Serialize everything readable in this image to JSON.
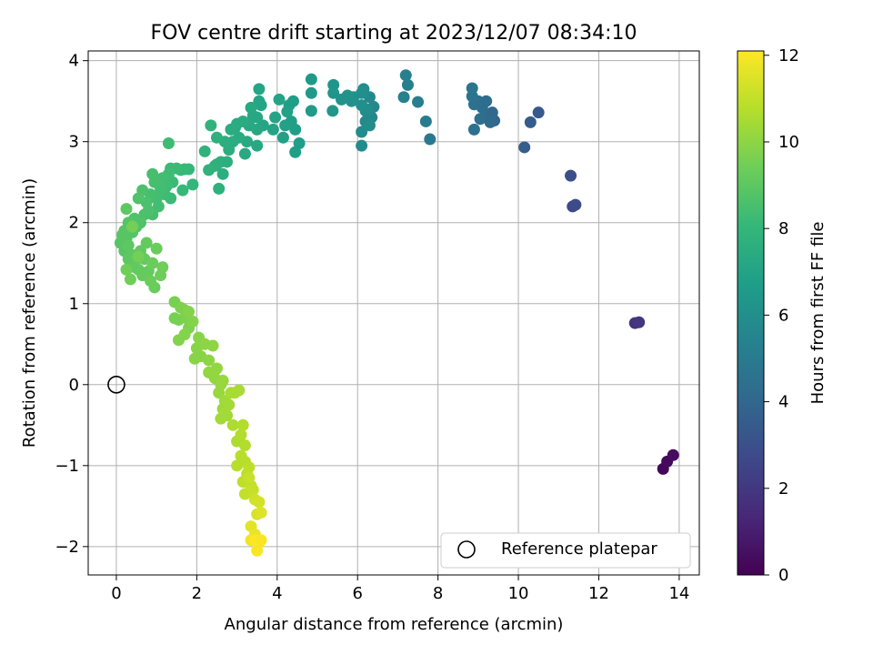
{
  "chart_data": {
    "type": "scatter",
    "title": "FOV centre drift starting at 2023/12/07 08:34:10",
    "xlabel": "Angular distance from reference (arcmin)",
    "ylabel": "Rotation from reference (arcmin)",
    "xlim": [
      -0.7,
      14.5
    ],
    "ylim": [
      -2.35,
      4.12
    ],
    "xticks": [
      0,
      2,
      4,
      6,
      8,
      10,
      12,
      14
    ],
    "yticks": [
      -2,
      -1,
      0,
      1,
      2,
      3,
      4
    ],
    "xtick_labels": [
      "0",
      "2",
      "4",
      "6",
      "8",
      "10",
      "12",
      "14"
    ],
    "ytick_labels": [
      "−2",
      "−1",
      "0",
      "1",
      "2",
      "3",
      "4"
    ],
    "grid": true,
    "legend": {
      "position": "lower right",
      "entries": [
        "Reference platepar"
      ]
    },
    "reference_point": {
      "x": 0,
      "y": 0
    },
    "colorbar": {
      "label": "Hours from first FF file",
      "colormap": "viridis",
      "range": [
        0,
        12.1
      ],
      "ticks": [
        0,
        2,
        4,
        6,
        8,
        10,
        12
      ],
      "tick_labels": [
        "0",
        "2",
        "4",
        "6",
        "8",
        "10",
        "12"
      ]
    },
    "series": [
      {
        "columns": [
          "x",
          "y",
          "hours"
        ],
        "points": [
          [
            13.6,
            -1.04,
            0.2
          ],
          [
            13.7,
            -0.95,
            0.3
          ],
          [
            13.85,
            -0.87,
            0.4
          ],
          [
            12.9,
            0.76,
            1.8
          ],
          [
            13.0,
            0.77,
            1.9
          ],
          [
            11.35,
            2.2,
            2.7
          ],
          [
            11.42,
            2.22,
            2.8
          ],
          [
            11.3,
            2.58,
            3.0
          ],
          [
            10.5,
            3.36,
            3.4
          ],
          [
            10.3,
            3.24,
            3.5
          ],
          [
            10.15,
            2.93,
            3.6
          ],
          [
            9.4,
            3.26,
            4.0
          ],
          [
            9.3,
            3.32,
            4.1
          ],
          [
            9.2,
            3.3,
            4.2
          ],
          [
            9.35,
            3.36,
            4.1
          ],
          [
            9.1,
            3.42,
            4.3
          ],
          [
            9.0,
            3.5,
            4.4
          ],
          [
            8.9,
            3.46,
            4.5
          ],
          [
            9.2,
            3.5,
            4.3
          ],
          [
            8.85,
            3.56,
            4.6
          ],
          [
            8.85,
            3.66,
            4.7
          ],
          [
            9.05,
            3.28,
            4.4
          ],
          [
            8.9,
            3.15,
            4.5
          ],
          [
            9.3,
            3.24,
            4.2
          ],
          [
            7.8,
            3.03,
            4.9
          ],
          [
            7.7,
            3.25,
            5.0
          ],
          [
            7.5,
            3.49,
            5.1
          ],
          [
            7.25,
            3.7,
            5.2
          ],
          [
            7.2,
            3.82,
            5.3
          ],
          [
            7.15,
            3.55,
            5.3
          ],
          [
            6.4,
            3.43,
            5.6
          ],
          [
            6.3,
            3.55,
            5.7
          ],
          [
            6.35,
            3.3,
            5.6
          ],
          [
            6.2,
            3.25,
            5.7
          ],
          [
            6.1,
            3.12,
            5.8
          ],
          [
            6.1,
            2.95,
            5.8
          ],
          [
            6.2,
            3.38,
            5.8
          ],
          [
            6.15,
            3.65,
            5.9
          ],
          [
            6.1,
            3.6,
            6.0
          ],
          [
            6.25,
            3.4,
            5.9
          ],
          [
            6.3,
            3.2,
            5.9
          ],
          [
            6.1,
            3.45,
            6.0
          ],
          [
            5.9,
            3.55,
            6.1
          ],
          [
            5.85,
            3.5,
            6.1
          ],
          [
            5.75,
            3.57,
            6.2
          ],
          [
            5.6,
            3.52,
            6.2
          ],
          [
            5.4,
            3.7,
            6.3
          ],
          [
            5.4,
            3.6,
            6.3
          ],
          [
            5.38,
            3.38,
            6.4
          ],
          [
            4.85,
            3.77,
            6.5
          ],
          [
            4.85,
            3.6,
            6.5
          ],
          [
            4.85,
            3.38,
            6.6
          ],
          [
            4.55,
            2.98,
            6.7
          ],
          [
            4.45,
            2.87,
            6.8
          ],
          [
            4.45,
            3.15,
            6.8
          ],
          [
            4.4,
            3.5,
            6.7
          ],
          [
            4.3,
            3.45,
            6.8
          ],
          [
            4.35,
            3.25,
            6.8
          ],
          [
            4.25,
            3.37,
            6.9
          ],
          [
            4.2,
            3.2,
            6.9
          ],
          [
            4.15,
            3.05,
            6.9
          ],
          [
            4.05,
            3.52,
            7.0
          ],
          [
            3.95,
            3.3,
            7.0
          ],
          [
            3.9,
            3.15,
            7.0
          ],
          [
            3.65,
            3.2,
            7.1
          ],
          [
            3.6,
            3.45,
            7.1
          ],
          [
            3.55,
            3.65,
            7.1
          ],
          [
            3.55,
            3.5,
            7.1
          ],
          [
            3.5,
            3.3,
            7.2
          ],
          [
            3.5,
            3.15,
            7.2
          ],
          [
            3.5,
            2.95,
            7.2
          ],
          [
            3.4,
            3.32,
            7.2
          ],
          [
            3.35,
            3.42,
            7.3
          ],
          [
            3.3,
            3.2,
            7.3
          ],
          [
            3.25,
            3.0,
            7.3
          ],
          [
            3.2,
            2.85,
            7.3
          ],
          [
            3.15,
            3.25,
            7.4
          ],
          [
            3.05,
            3.05,
            7.4
          ],
          [
            3.0,
            3.22,
            7.4
          ],
          [
            2.95,
            3.17,
            7.4
          ],
          [
            2.9,
            3.0,
            7.5
          ],
          [
            2.85,
            3.15,
            7.5
          ],
          [
            2.8,
            2.9,
            7.5
          ],
          [
            2.75,
            2.75,
            7.6
          ],
          [
            2.7,
            3.0,
            7.6
          ],
          [
            2.65,
            2.6,
            7.6
          ],
          [
            2.6,
            2.75,
            7.6
          ],
          [
            2.55,
            2.42,
            7.7
          ],
          [
            2.5,
            2.72,
            7.7
          ],
          [
            2.45,
            2.7,
            7.7
          ],
          [
            2.5,
            3.05,
            7.7
          ],
          [
            2.35,
            3.2,
            7.8
          ],
          [
            2.3,
            2.65,
            7.8
          ],
          [
            2.2,
            2.88,
            7.8
          ],
          [
            1.9,
            2.47,
            8.0
          ],
          [
            1.8,
            2.66,
            8.0
          ],
          [
            1.7,
            2.66,
            8.1
          ],
          [
            1.65,
            2.4,
            8.1
          ],
          [
            1.6,
            2.65,
            8.1
          ],
          [
            1.5,
            2.67,
            8.2
          ],
          [
            1.4,
            2.5,
            8.2
          ],
          [
            1.35,
            2.3,
            8.2
          ],
          [
            1.35,
            2.67,
            8.2
          ],
          [
            1.3,
            2.6,
            8.3
          ],
          [
            1.3,
            2.98,
            8.3
          ],
          [
            1.25,
            2.45,
            8.3
          ],
          [
            1.2,
            2.35,
            8.3
          ],
          [
            1.15,
            2.55,
            8.4
          ],
          [
            1.1,
            2.42,
            8.4
          ],
          [
            1.05,
            2.2,
            8.4
          ],
          [
            1.0,
            2.3,
            8.4
          ],
          [
            0.95,
            2.5,
            8.5
          ],
          [
            0.9,
            2.6,
            8.5
          ],
          [
            0.9,
            2.1,
            8.5
          ],
          [
            0.85,
            2.35,
            8.5
          ],
          [
            0.8,
            2.15,
            8.6
          ],
          [
            0.75,
            2.25,
            8.6
          ],
          [
            0.7,
            2.1,
            8.6
          ],
          [
            0.65,
            2.4,
            8.6
          ],
          [
            0.6,
            2.0,
            8.7
          ],
          [
            0.55,
            2.3,
            8.7
          ],
          [
            0.5,
            1.95,
            8.7
          ],
          [
            0.45,
            2.05,
            8.7
          ],
          [
            0.4,
            1.88,
            8.8
          ],
          [
            0.35,
            1.95,
            8.8
          ],
          [
            0.3,
            2.0,
            8.8
          ],
          [
            0.25,
            1.8,
            8.8
          ],
          [
            0.2,
            1.9,
            8.9
          ],
          [
            0.15,
            1.85,
            8.9
          ],
          [
            0.1,
            1.75,
            8.9
          ],
          [
            0.2,
            1.65,
            8.9
          ],
          [
            0.3,
            1.72,
            9.0
          ],
          [
            0.25,
            2.17,
            9.0
          ],
          [
            0.3,
            1.55,
            9.0
          ],
          [
            0.4,
            1.6,
            9.0
          ],
          [
            0.45,
            1.45,
            9.1
          ],
          [
            0.5,
            1.55,
            9.1
          ],
          [
            0.55,
            1.42,
            9.1
          ],
          [
            0.6,
            1.65,
            9.1
          ],
          [
            0.65,
            1.35,
            9.2
          ],
          [
            0.7,
            1.55,
            9.2
          ],
          [
            0.75,
            1.75,
            9.2
          ],
          [
            0.8,
            1.4,
            9.2
          ],
          [
            0.85,
            1.28,
            9.3
          ],
          [
            0.9,
            1.5,
            9.3
          ],
          [
            0.95,
            1.2,
            9.3
          ],
          [
            1.0,
            1.68,
            9.3
          ],
          [
            1.1,
            1.35,
            9.4
          ],
          [
            0.25,
            1.42,
            9.4
          ],
          [
            0.35,
            1.3,
            9.4
          ],
          [
            1.15,
            1.45,
            9.4
          ],
          [
            0.55,
            1.58,
            9.5
          ],
          [
            0.4,
            1.95,
            9.5
          ],
          [
            1.45,
            1.02,
            9.6
          ],
          [
            1.55,
            0.8,
            9.6
          ],
          [
            1.45,
            0.82,
            9.6
          ],
          [
            1.6,
            0.95,
            9.7
          ],
          [
            1.7,
            0.92,
            9.7
          ],
          [
            1.75,
            0.82,
            9.7
          ],
          [
            1.8,
            0.7,
            9.7
          ],
          [
            1.9,
            0.78,
            9.8
          ],
          [
            1.55,
            0.55,
            9.8
          ],
          [
            1.7,
            0.62,
            9.8
          ],
          [
            1.8,
            0.9,
            9.8
          ],
          [
            2.05,
            0.58,
            9.9
          ],
          [
            2.0,
            0.45,
            9.9
          ],
          [
            2.1,
            0.35,
            9.9
          ],
          [
            1.95,
            0.32,
            9.9
          ],
          [
            2.2,
            0.5,
            10.0
          ],
          [
            2.3,
            0.3,
            10.0
          ],
          [
            2.4,
            0.48,
            10.0
          ],
          [
            2.3,
            0.15,
            10.1
          ],
          [
            2.45,
            0.08,
            10.1
          ],
          [
            2.5,
            0.2,
            10.1
          ],
          [
            2.55,
            -0.1,
            10.2
          ],
          [
            2.6,
            0.0,
            10.2
          ],
          [
            2.65,
            0.05,
            10.2
          ],
          [
            2.7,
            -0.2,
            10.3
          ],
          [
            2.65,
            -0.3,
            10.3
          ],
          [
            2.75,
            -0.38,
            10.3
          ],
          [
            2.8,
            -0.25,
            10.4
          ],
          [
            2.6,
            -0.42,
            10.4
          ],
          [
            2.7,
            -0.35,
            10.4
          ],
          [
            2.85,
            -0.1,
            10.5
          ],
          [
            2.95,
            -0.1,
            10.5
          ],
          [
            3.05,
            -0.07,
            10.5
          ],
          [
            2.9,
            -0.5,
            10.6
          ],
          [
            3.0,
            -0.7,
            10.6
          ],
          [
            3.1,
            -0.62,
            10.7
          ],
          [
            3.15,
            -0.5,
            10.7
          ],
          [
            3.2,
            -0.75,
            10.7
          ],
          [
            3.1,
            -0.88,
            10.8
          ],
          [
            3.0,
            -1.0,
            10.8
          ],
          [
            3.2,
            -0.95,
            10.8
          ],
          [
            3.25,
            -1.1,
            10.9
          ],
          [
            3.3,
            -1.02,
            10.9
          ],
          [
            3.15,
            -1.2,
            10.9
          ],
          [
            3.35,
            -1.25,
            11.0
          ],
          [
            3.2,
            -1.35,
            11.0
          ],
          [
            3.4,
            -1.3,
            11.1
          ],
          [
            3.3,
            -1.15,
            11.1
          ],
          [
            3.45,
            -1.42,
            11.2
          ],
          [
            3.55,
            -1.45,
            11.3
          ],
          [
            3.5,
            -1.6,
            11.4
          ],
          [
            3.6,
            -1.58,
            11.5
          ],
          [
            3.35,
            -1.75,
            11.6
          ],
          [
            3.45,
            -1.85,
            11.7
          ],
          [
            3.35,
            -1.92,
            11.8
          ],
          [
            3.55,
            -1.95,
            11.9
          ],
          [
            3.5,
            -2.05,
            12.0
          ],
          [
            3.45,
            -1.92,
            12.1
          ],
          [
            3.6,
            -1.92,
            12.0
          ]
        ]
      }
    ]
  }
}
